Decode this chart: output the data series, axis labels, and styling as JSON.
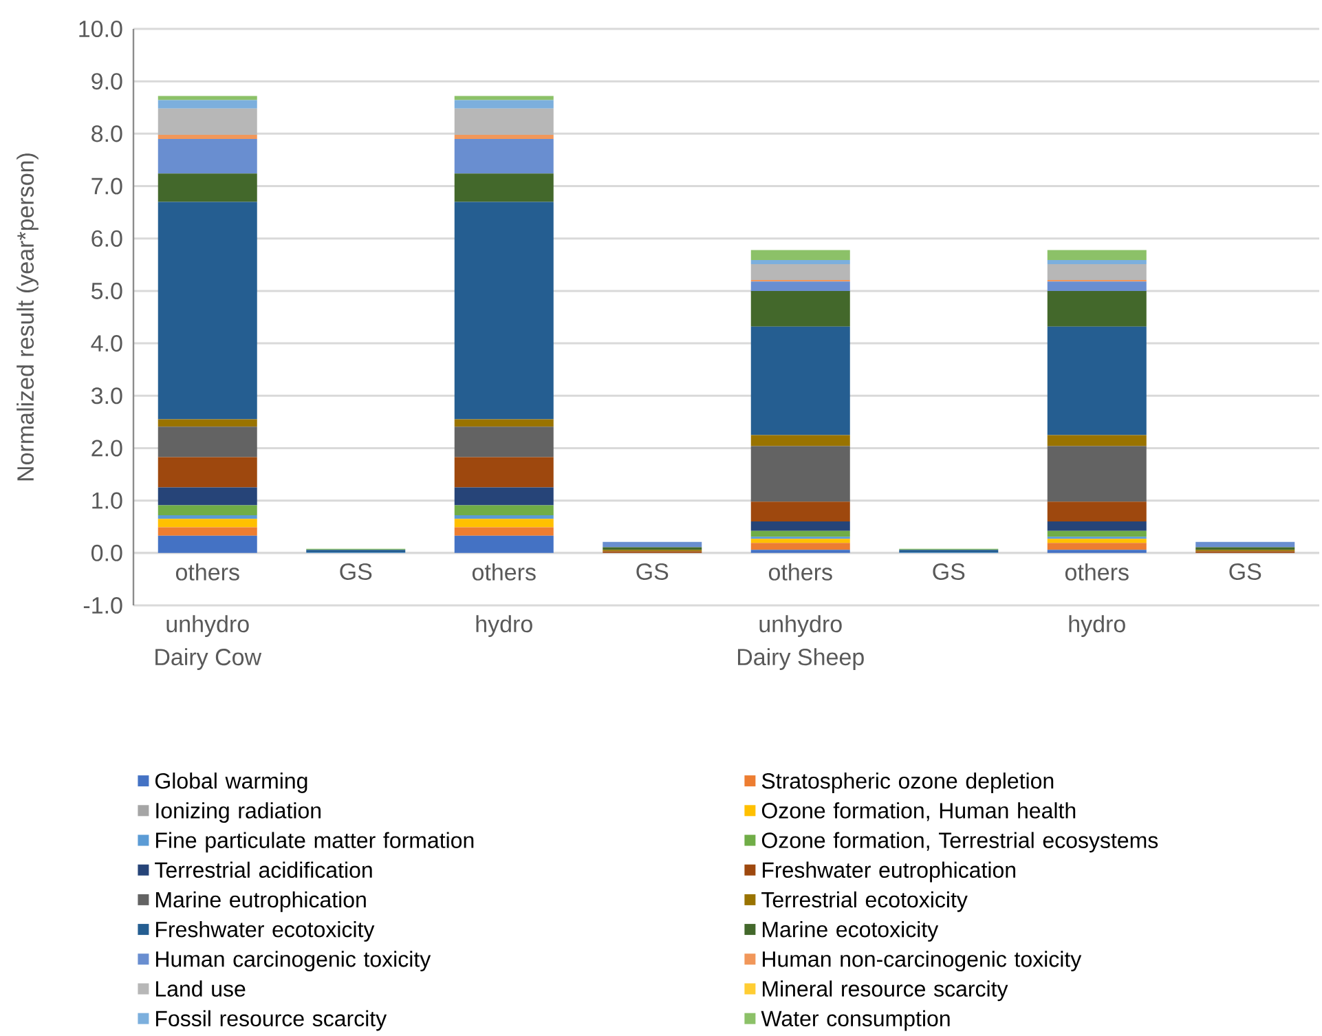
{
  "chart_data": {
    "type": "bar",
    "stacked": true,
    "ylabel": "Normalized result (year*person)",
    "categories": [
      "others",
      "GS",
      "others",
      "GS",
      "others",
      "GS",
      "others",
      "GS"
    ],
    "annotations": [
      "unhydro",
      "hydro",
      "unhydro",
      "hydro",
      "Dairy Cow",
      "Dairy Sheep"
    ],
    "ylim": [
      -1,
      10
    ],
    "yticks": [
      {
        "value": -1,
        "label": "-1.0"
      },
      {
        "value": 0,
        "label": "0.0"
      },
      {
        "value": 1,
        "label": "1.0"
      },
      {
        "value": 2,
        "label": "2.0"
      },
      {
        "value": 3,
        "label": "3.0"
      },
      {
        "value": 4,
        "label": "4.0"
      },
      {
        "value": 5,
        "label": "5.0"
      },
      {
        "value": 6,
        "label": "6.0"
      },
      {
        "value": 7,
        "label": "7.0"
      },
      {
        "value": 8,
        "label": "8.0"
      },
      {
        "value": 9,
        "label": "9.0"
      },
      {
        "value": 10,
        "label": "10.0"
      }
    ],
    "grid": "y",
    "legend": "bottom",
    "series": [
      {
        "name": "Global warming",
        "color": "#4472c4",
        "values": [
          0.33,
          0,
          0.33,
          0,
          0.06,
          0,
          0.06,
          0
        ]
      },
      {
        "name": "Stratospheric ozone depletion",
        "color": "#ed7d31",
        "values": [
          0.16,
          0,
          0.16,
          0,
          0.13,
          0,
          0.13,
          0
        ]
      },
      {
        "name": "Ionizing radiation",
        "color": "#a5a5a5",
        "values": [
          0,
          0,
          0,
          0,
          null,
          0,
          null,
          0
        ]
      },
      {
        "name": "Ozone formation, Human health",
        "color": "#ffc000",
        "values": [
          0.16,
          0,
          0.16,
          0,
          0.08,
          0,
          0.08,
          0
        ]
      },
      {
        "name": "Fine particulate matter formation",
        "color": "#5b9bd5",
        "values": [
          0.07,
          0.01,
          0.07,
          0,
          0.04,
          0.01,
          0.04,
          0
        ]
      },
      {
        "name": "Ozone formation, Terrestrial ecosystems",
        "color": "#70ad47",
        "values": [
          0.19,
          0,
          0.19,
          0,
          0.11,
          0,
          0.11,
          0
        ]
      },
      {
        "name": "Terrestrial acidification",
        "color": "#264478",
        "values": [
          0.34,
          0,
          0.34,
          0,
          0.18,
          0,
          0.18,
          0
        ]
      },
      {
        "name": "Freshwater eutrophication",
        "color": "#9e480e",
        "values": [
          0.58,
          0,
          0.58,
          0.03,
          0.38,
          0,
          0.38,
          0.03
        ]
      },
      {
        "name": "Marine eutrophication",
        "color": "#636363",
        "values": [
          0.58,
          0,
          0.58,
          0,
          1.06,
          0,
          1.06,
          0
        ]
      },
      {
        "name": "Terrestrial ecotoxicity",
        "color": "#997300",
        "values": [
          0.14,
          0,
          0.14,
          0.03,
          0.21,
          0,
          0.21,
          0.03
        ]
      },
      {
        "name": "Freshwater ecotoxicity",
        "color": "#255e91",
        "values": [
          4.15,
          0.05,
          4.15,
          0,
          2.07,
          0.05,
          2.07,
          0
        ]
      },
      {
        "name": "Marine ecotoxicity",
        "color": "#43682b",
        "values": [
          0.54,
          0,
          0.54,
          0.05,
          0.68,
          0,
          0.68,
          0.05
        ]
      },
      {
        "name": "Human carcinogenic toxicity",
        "color": "#698ed0",
        "values": [
          0.66,
          0,
          0.66,
          0.1,
          0.18,
          0,
          0.18,
          0.1
        ]
      },
      {
        "name": "Human non-carcinogenic toxicity",
        "color": "#f1975a",
        "values": [
          0.08,
          0,
          0.08,
          0,
          0.03,
          0,
          0.03,
          0
        ]
      },
      {
        "name": "Land use",
        "color": "#b7b7b7",
        "values": [
          0.5,
          0,
          0.5,
          0,
          0.3,
          0,
          0.3,
          0
        ]
      },
      {
        "name": "Mineral resource scarcity",
        "color": "#ffcd33",
        "values": [
          0,
          0,
          0,
          0,
          0,
          0,
          0,
          0
        ]
      },
      {
        "name": "Fossil resource scarcity",
        "color": "#7cafdd",
        "values": [
          0.16,
          0,
          0.16,
          0,
          0.08,
          0,
          0.08,
          0
        ]
      },
      {
        "name": "Water consumption",
        "color": "#8cc168",
        "values": [
          0.08,
          0.02,
          0.08,
          0,
          0.19,
          0.02,
          0.19,
          0
        ]
      }
    ]
  }
}
